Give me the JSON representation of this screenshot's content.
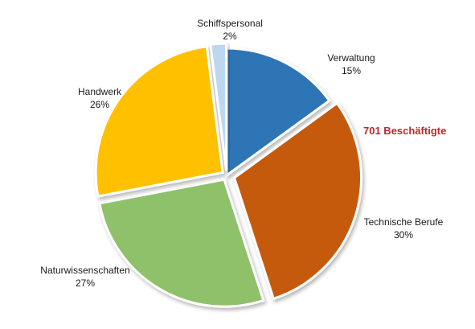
{
  "chart_data": {
    "type": "pie",
    "annotation": "701 Beschäftigte",
    "annotation_color": "#c0272d",
    "slices": [
      {
        "name": "Verwaltung",
        "label": "15%",
        "value": 15,
        "color": "#2e75b6"
      },
      {
        "name": "Technische Berufe",
        "label": "30%",
        "value": 30,
        "color": "#c55a11"
      },
      {
        "name": "Naturwissenschaften",
        "label": "27%",
        "value": 27,
        "color": "#8fc16a"
      },
      {
        "name": "Handwerk",
        "label": "26%",
        "value": 26,
        "color": "#ffc000"
      },
      {
        "name": "Schiffspersonal",
        "label": "2%",
        "value": 2,
        "color": "#bdd7ee"
      }
    ]
  }
}
